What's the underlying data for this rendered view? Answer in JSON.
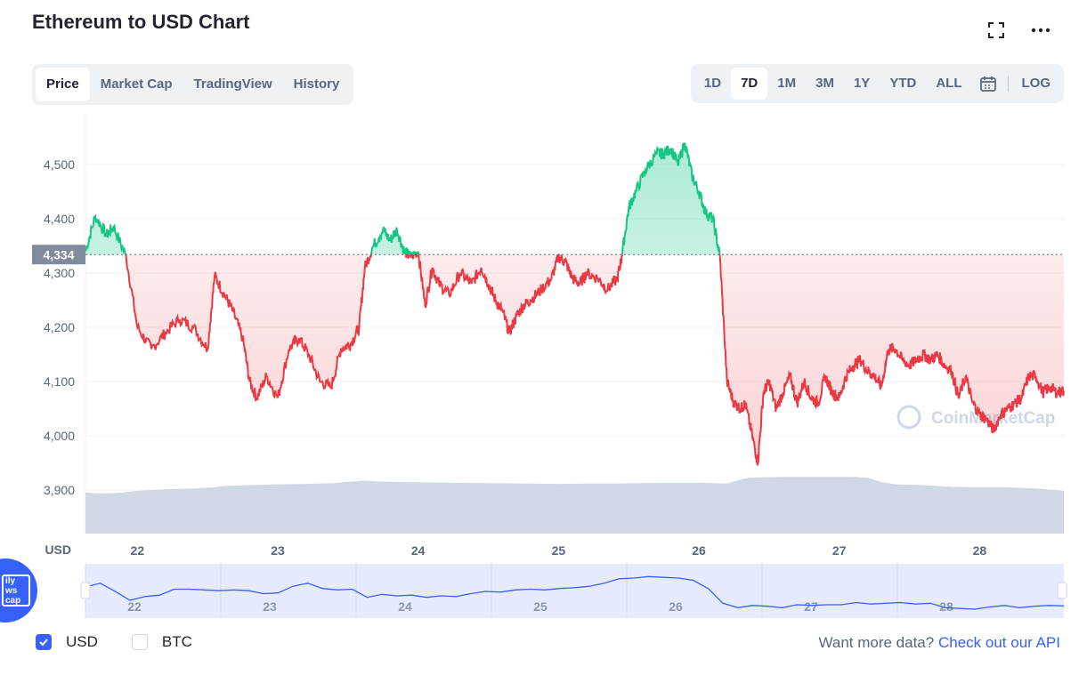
{
  "header": {
    "title": "Ethereum to USD Chart"
  },
  "tabs": [
    {
      "label": "Price",
      "active": true
    },
    {
      "label": "Market Cap",
      "active": false
    },
    {
      "label": "TradingView",
      "active": false
    },
    {
      "label": "History",
      "active": false
    }
  ],
  "ranges": [
    {
      "label": "1D",
      "active": false
    },
    {
      "label": "7D",
      "active": true
    },
    {
      "label": "1M",
      "active": false
    },
    {
      "label": "3M",
      "active": false
    },
    {
      "label": "1Y",
      "active": false
    },
    {
      "label": "YTD",
      "active": false
    },
    {
      "label": "ALL",
      "active": false
    }
  ],
  "log_label": "LOG",
  "news_label": "ily ws cap",
  "legend": {
    "usd_label": "USD",
    "btc_label": "BTC"
  },
  "api": {
    "prefix": "Want more data?",
    "link": "Check out our API"
  },
  "colors": {
    "up": "#16c784",
    "down": "#ea3943",
    "volume": "#cfd6e4",
    "accent": "#3861fb"
  },
  "chart_data": {
    "type": "line",
    "title": "Ethereum to USD Chart",
    "ylabel": "USD",
    "ylim": [
      3820,
      4590
    ],
    "yticks": [
      3900,
      4000,
      4100,
      4200,
      4300,
      4400,
      4500
    ],
    "ytick_labels": [
      "3,900",
      "4,000",
      "4,100",
      "4,200",
      "4,300",
      "4,400",
      "4,500"
    ],
    "xlim": [
      21.63,
      28.6
    ],
    "xticks": [
      22,
      23,
      24,
      25,
      26,
      27,
      28
    ],
    "xtick_labels": [
      "22",
      "23",
      "24",
      "25",
      "26",
      "27",
      "28"
    ],
    "current_price": 4334,
    "current_price_label": "4,334",
    "watermark": "CoinMarketCap",
    "series": [
      {
        "name": "Price",
        "x": [
          21.63,
          21.7,
          21.78,
          21.83,
          21.92,
          22.0,
          22.1,
          22.2,
          22.3,
          22.4,
          22.5,
          22.55,
          22.62,
          22.68,
          22.75,
          22.8,
          22.85,
          22.92,
          23.0,
          23.08,
          23.15,
          23.22,
          23.3,
          23.38,
          23.45,
          23.52,
          23.58,
          23.62,
          23.68,
          23.75,
          23.8,
          23.85,
          23.9,
          23.95,
          24.0,
          24.05,
          24.1,
          24.15,
          24.22,
          24.3,
          24.38,
          24.45,
          24.5,
          24.55,
          24.6,
          24.65,
          24.7,
          24.75,
          24.8,
          24.88,
          24.95,
          25.0,
          25.05,
          25.1,
          25.15,
          25.2,
          25.28,
          25.35,
          25.42,
          25.45,
          25.5,
          25.55,
          25.62,
          25.7,
          25.75,
          25.8,
          25.85,
          25.9,
          25.95,
          26.0,
          26.05,
          26.1,
          26.15,
          26.2,
          26.25,
          26.3,
          26.33,
          26.38,
          26.42,
          26.46,
          26.5,
          26.55,
          26.6,
          26.65,
          26.7,
          26.75,
          26.8,
          26.85,
          26.9,
          26.95,
          27.0,
          27.05,
          27.1,
          27.15,
          27.2,
          27.25,
          27.3,
          27.35,
          27.4,
          27.45,
          27.5,
          27.55,
          27.6,
          27.65,
          27.7,
          27.75,
          27.8,
          27.85,
          27.9,
          27.95,
          28.0,
          28.05,
          28.1,
          28.15,
          28.2,
          28.25,
          28.3,
          28.35,
          28.4,
          28.45,
          28.5,
          28.55,
          28.6
        ],
        "values": [
          4340,
          4405,
          4370,
          4385,
          4330,
          4200,
          4160,
          4190,
          4215,
          4200,
          4160,
          4295,
          4260,
          4230,
          4180,
          4100,
          4070,
          4110,
          4070,
          4160,
          4180,
          4150,
          4100,
          4090,
          4160,
          4170,
          4200,
          4310,
          4350,
          4380,
          4360,
          4380,
          4340,
          4330,
          4340,
          4240,
          4310,
          4280,
          4260,
          4300,
          4280,
          4310,
          4280,
          4250,
          4230,
          4190,
          4220,
          4240,
          4250,
          4270,
          4290,
          4330,
          4320,
          4290,
          4280,
          4300,
          4290,
          4270,
          4290,
          4330,
          4420,
          4450,
          4490,
          4520,
          4520,
          4530,
          4500,
          4540,
          4480,
          4450,
          4410,
          4400,
          4330,
          4100,
          4060,
          4050,
          4060,
          4000,
          3950,
          4080,
          4100,
          4050,
          4080,
          4110,
          4060,
          4100,
          4070,
          4060,
          4110,
          4080,
          4070,
          4110,
          4130,
          4140,
          4120,
          4110,
          4090,
          4160,
          4160,
          4140,
          4130,
          4140,
          4150,
          4140,
          4150,
          4130,
          4120,
          4070,
          4110,
          4060,
          4040,
          4030,
          4010,
          4040,
          4050,
          4060,
          4070,
          4110,
          4110,
          4080,
          4090,
          4080,
          4083
        ]
      },
      {
        "name": "Volume",
        "x": [
          21.63,
          21.7,
          21.8,
          21.9,
          22.0,
          22.2,
          22.4,
          22.55,
          22.62,
          22.8,
          23.0,
          23.2,
          23.4,
          23.5,
          23.62,
          23.7,
          23.8,
          24.0,
          24.2,
          24.5,
          24.8,
          25.0,
          25.2,
          25.4,
          25.6,
          25.8,
          26.0,
          26.2,
          26.28,
          26.35,
          26.45,
          26.6,
          26.8,
          27.0,
          27.1,
          27.2,
          27.3,
          27.4,
          27.6,
          27.8,
          28.0,
          28.2,
          28.4,
          28.5,
          28.6
        ],
        "values": [
          100,
          98,
          98,
          100,
          104,
          108,
          110,
          113,
          116,
          118,
          120,
          121,
          123,
          126,
          129,
          127,
          126,
          125,
          124,
          123,
          122,
          121,
          122,
          122,
          123,
          124,
          124,
          122,
          130,
          136,
          137,
          138,
          138,
          138,
          138,
          136,
          126,
          120,
          118,
          114,
          113,
          113,
          110,
          107,
          104
        ]
      }
    ]
  },
  "navigator": {
    "xtick_labels": [
      "22",
      "23",
      "24",
      "25",
      "26",
      "27",
      "28"
    ],
    "values": [
      4340,
      4390,
      4280,
      4160,
      4210,
      4230,
      4310,
      4310,
      4300,
      4290,
      4300,
      4290,
      4250,
      4260,
      4350,
      4390,
      4320,
      4300,
      4310,
      4200,
      4240,
      4220,
      4230,
      4200,
      4220,
      4210,
      4250,
      4280,
      4270,
      4300,
      4310,
      4300,
      4320,
      4330,
      4350,
      4390,
      4450,
      4460,
      4480,
      4470,
      4460,
      4430,
      4320,
      4120,
      4060,
      4090,
      4080,
      4060,
      4100,
      4090,
      4100,
      4100,
      4130,
      4110,
      4120,
      4130,
      4110,
      4120,
      4060,
      4050,
      4040,
      4070,
      4090,
      4060,
      4080,
      4090,
      4085
    ]
  }
}
